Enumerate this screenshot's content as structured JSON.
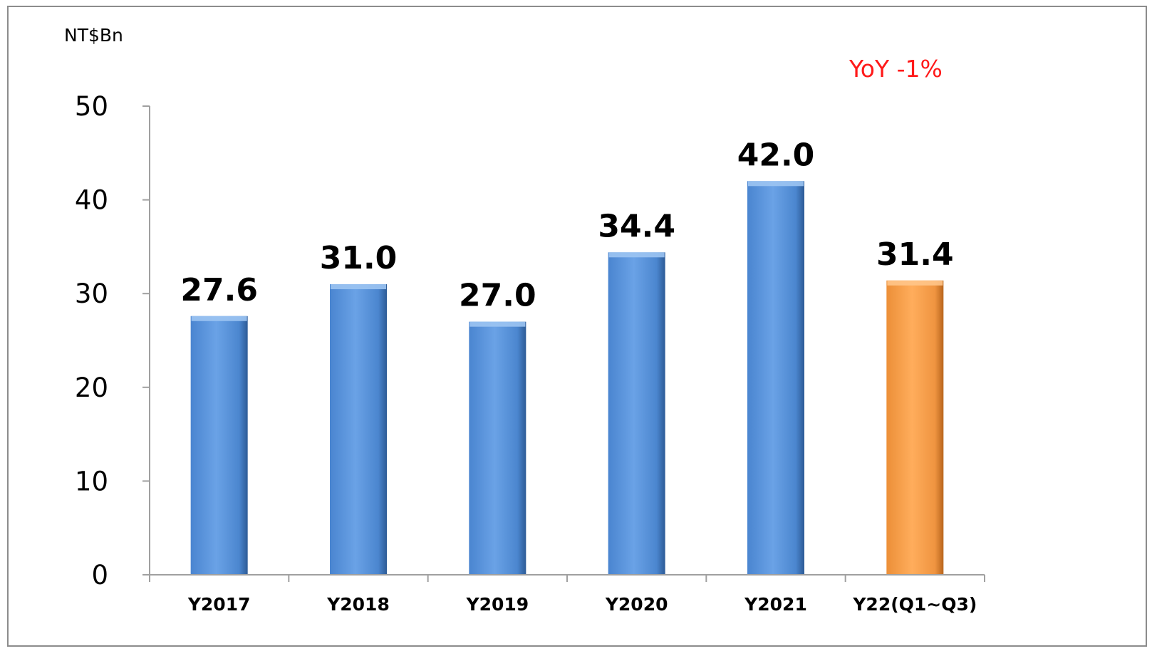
{
  "chart_data": {
    "type": "bar",
    "unit_label": "NT$Bn",
    "annotation": "YoY -1%",
    "categories": [
      "Y2017",
      "Y2018",
      "Y2019",
      "Y2020",
      "Y2021",
      "Y22(Q1~Q3)"
    ],
    "values": [
      27.6,
      31.0,
      27.0,
      34.4,
      42.0,
      31.4
    ],
    "data_labels": [
      "27.6",
      "31.0",
      "27.0",
      "34.4",
      "42.0",
      "31.4"
    ],
    "y_ticks": [
      "0",
      "10",
      "20",
      "30",
      "40",
      "50"
    ],
    "ylim": [
      0,
      50
    ],
    "grid": false,
    "legend": "none",
    "colors": {
      "default_bar": "#5b95dc",
      "highlight_bar": "#f9a04c",
      "annotation": "#ff1a1a",
      "axis": "#a0a0a0"
    },
    "highlight_index": 5
  }
}
